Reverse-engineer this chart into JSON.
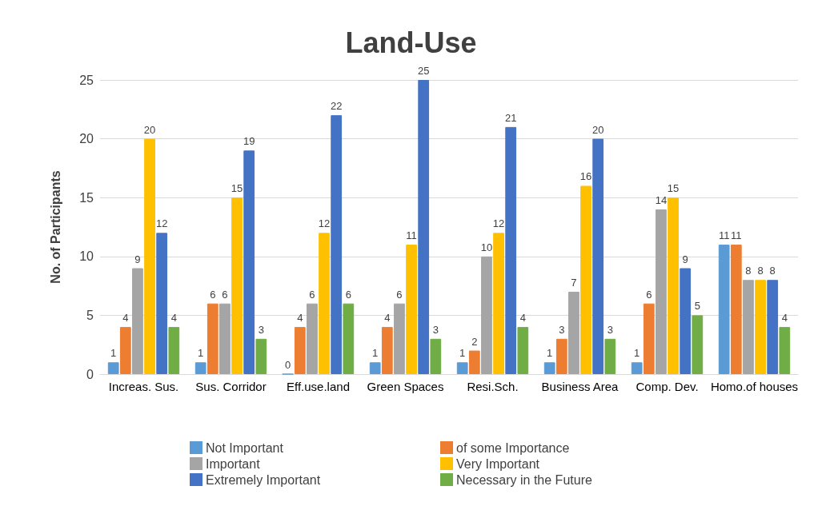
{
  "chart_data": {
    "type": "bar",
    "title": "Land-Use",
    "ylabel": "No. of Participants",
    "categories": [
      "Increas. Sus.",
      "Sus. Corridor",
      "Eff.use.land",
      "Green Spaces",
      "Resi.Sch.",
      "Business Area",
      "Comp. Dev.",
      "Homo.of houses"
    ],
    "series": [
      {
        "name": "Not Important",
        "color": "#5b9bd5",
        "values": [
          1,
          1,
          0,
          1,
          1,
          1,
          1,
          11
        ]
      },
      {
        "name": "of some Importance",
        "color": "#ed7d31",
        "values": [
          4,
          6,
          4,
          4,
          2,
          3,
          6,
          11
        ]
      },
      {
        "name": "Important",
        "color": "#a5a5a5",
        "values": [
          9,
          6,
          6,
          6,
          10,
          7,
          14,
          8
        ]
      },
      {
        "name": "Very Important",
        "color": "#ffc000",
        "values": [
          20,
          15,
          12,
          11,
          12,
          16,
          15,
          8
        ]
      },
      {
        "name": "Extremely Important",
        "color": "#4472c4",
        "values": [
          12,
          19,
          22,
          25,
          21,
          20,
          9,
          8
        ]
      },
      {
        "name": "Necessary in the Future",
        "color": "#70ad47",
        "values": [
          4,
          3,
          6,
          3,
          4,
          3,
          5,
          4
        ]
      }
    ],
    "ylim": [
      0,
      25
    ],
    "yticks": [
      0,
      5,
      10,
      15,
      20,
      25
    ],
    "grid": "y",
    "legend": "bottom",
    "data_labels": true
  }
}
